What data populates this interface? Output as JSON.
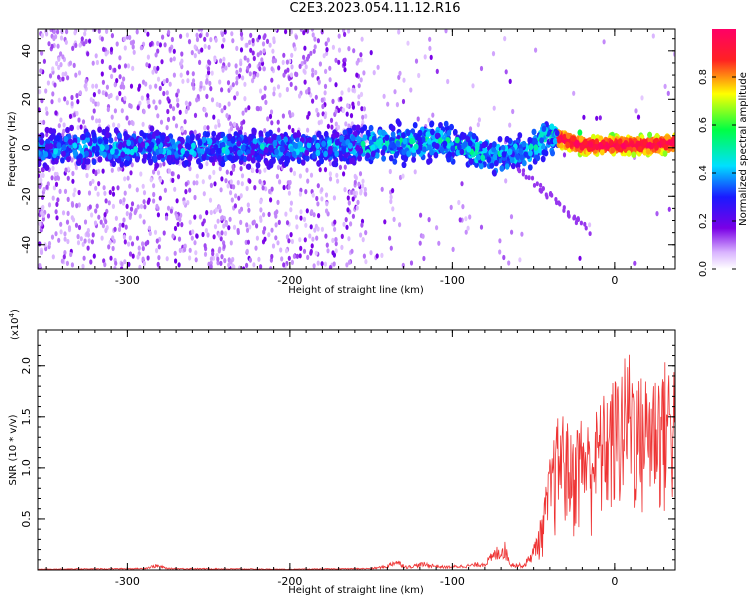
{
  "title": "C2E3.2023.054.11.12.R16",
  "chart_data": [
    {
      "type": "heatmap",
      "xlabel": "Height of straight line (km)",
      "ylabel": "Frequency (Hz)",
      "xlim": [
        -355,
        37
      ],
      "ylim": [
        -50,
        49
      ],
      "x_ticks": [
        -300,
        -200,
        -100,
        0
      ],
      "x_tick_labels": [
        "-300",
        "-200",
        "-100",
        "0"
      ],
      "y_ticks": [
        -40,
        -20,
        0,
        20,
        40
      ],
      "y_tick_labels": [
        "-40",
        "-20",
        "0",
        "20",
        "40"
      ],
      "colorbar": {
        "label": "Normalized spectral amplitude",
        "range": [
          0,
          1
        ],
        "ticks": [
          0.0,
          0.2,
          0.4,
          0.6,
          0.8
        ],
        "tick_labels": [
          "0.0",
          "0.2",
          "0.4",
          "0.6",
          "0.8"
        ]
      },
      "ridge_center_hz": [
        [
          -355,
          0
        ],
        [
          -300,
          0
        ],
        [
          -250,
          0
        ],
        [
          -200,
          0
        ],
        [
          -155,
          1
        ],
        [
          -130,
          2
        ],
        [
          -110,
          3
        ],
        [
          -100,
          2
        ],
        [
          -90,
          0
        ],
        [
          -80,
          -3
        ],
        [
          -70,
          -4
        ],
        [
          -60,
          -2
        ],
        [
          -50,
          0
        ],
        [
          -40,
          5
        ],
        [
          -30,
          3
        ],
        [
          -20,
          1
        ],
        [
          0,
          1
        ],
        [
          20,
          1
        ],
        [
          37,
          2
        ]
      ],
      "color_scale": [
        "#ffffff",
        "#cc99ff",
        "#7a00e6",
        "#1a1aff",
        "#00e0ff",
        "#00ff44",
        "#ffff00",
        "#ff2222",
        "#ff0066"
      ]
    },
    {
      "type": "line",
      "xlabel": "Height of straight line (km)",
      "ylabel": "SNR (10 * v/v)",
      "exponent_label": "(x10",
      "exponent_sup": "4",
      "exponent_close": ")",
      "xlim": [
        -355,
        37
      ],
      "ylim": [
        0,
        2.35
      ],
      "x_ticks": [
        -300,
        -200,
        -100,
        0
      ],
      "x_tick_labels": [
        "-300",
        "-200",
        "-100",
        "0"
      ],
      "y_ticks": [
        0.5,
        1.0,
        1.5,
        2.0
      ],
      "y_tick_labels": [
        "0.5",
        "1.0",
        "1.5",
        "2.0"
      ],
      "line_color": "#ee3333",
      "envelope": [
        [
          -355,
          0.01
        ],
        [
          -290,
          0.02
        ],
        [
          -282,
          0.06
        ],
        [
          -275,
          0.02
        ],
        [
          -200,
          0.01
        ],
        [
          -150,
          0.02
        ],
        [
          -140,
          0.05
        ],
        [
          -135,
          0.12
        ],
        [
          -128,
          0.04
        ],
        [
          -118,
          0.08
        ],
        [
          -105,
          0.04
        ],
        [
          -90,
          0.06
        ],
        [
          -80,
          0.09
        ],
        [
          -72,
          0.25
        ],
        [
          -68,
          0.3
        ],
        [
          -64,
          0.08
        ],
        [
          -56,
          0.06
        ],
        [
          -50,
          0.25
        ],
        [
          -45,
          0.55
        ],
        [
          -40,
          1.1
        ],
        [
          -36,
          1.45
        ],
        [
          -33,
          1.6
        ],
        [
          -30,
          1.5
        ],
        [
          -26,
          1.3
        ],
        [
          -22,
          1.55
        ],
        [
          -15,
          1.45
        ],
        [
          -8,
          1.7
        ],
        [
          -2,
          1.85
        ],
        [
          4,
          2.0
        ],
        [
          10,
          2.25
        ],
        [
          14,
          1.9
        ],
        [
          20,
          1.95
        ],
        [
          28,
          2.05
        ],
        [
          37,
          2.1
        ]
      ]
    }
  ]
}
